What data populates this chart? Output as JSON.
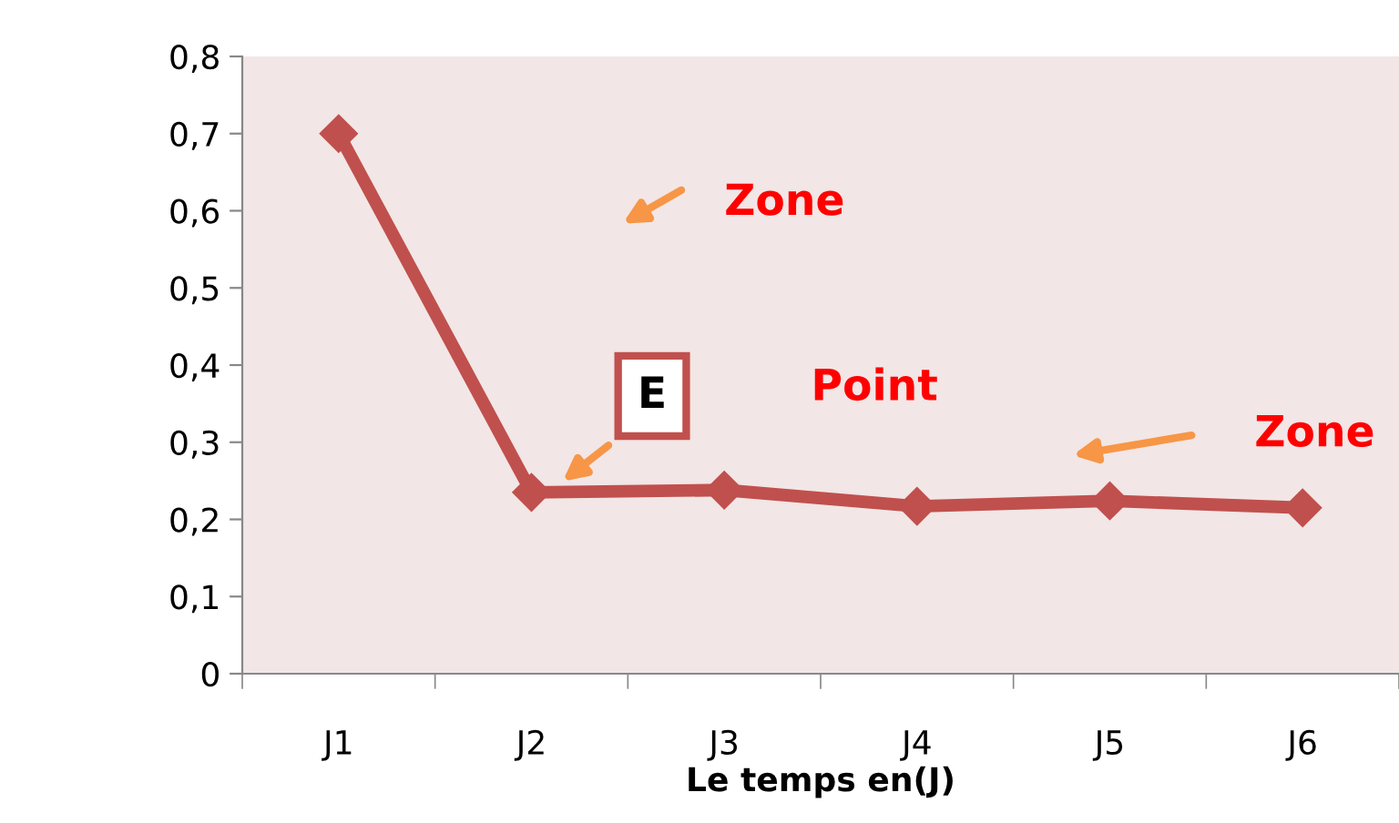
{
  "chart_data": {
    "type": "line",
    "xlabel": "Le temps en(J)",
    "categories": [
      "J1",
      "J2",
      "J3",
      "J4",
      "J5",
      "J6"
    ],
    "series": [
      {
        "color": "#c0504d",
        "values": [
          0.7,
          0.235,
          0.238,
          0.217,
          0.224,
          0.215
        ]
      }
    ],
    "ylim": [
      0,
      0.8
    ],
    "yticks": [
      0,
      {
        "value": 0.1,
        "label": "0,1"
      },
      {
        "value": 0.2,
        "label": "0,2"
      },
      {
        "value": 0.3,
        "label": "0,3"
      },
      {
        "value": 0.4,
        "label": "0,4"
      },
      {
        "value": 0.5,
        "label": "0,5"
      },
      {
        "value": 0.6,
        "label": "0,6"
      },
      {
        "value": 0.7,
        "label": "0,7"
      },
      {
        "value": 0.8,
        "label": "0,8"
      }
    ],
    "grid": false,
    "legend": false,
    "marker": "diamond",
    "line_style": "solid",
    "annotations": [
      "Zone",
      "E",
      "Point",
      "Zone"
    ]
  }
}
